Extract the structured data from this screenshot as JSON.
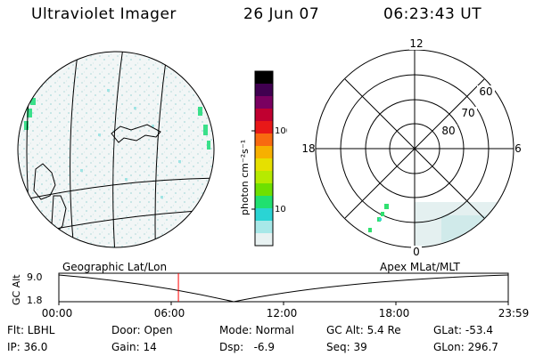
{
  "header": {
    "title": "Ultraviolet Imager",
    "date": "26 Jun 07",
    "time": "06:23:43 UT"
  },
  "colorbar": {
    "unit_label": "photon cm⁻²s⁻¹",
    "ticks": [
      "100",
      "10"
    ],
    "colors": [
      "#000000",
      "#400050",
      "#7a0060",
      "#c00030",
      "#e81818",
      "#f86a10",
      "#f7b000",
      "#e6e000",
      "#b6ea00",
      "#6ee000",
      "#20e070",
      "#2ad4d4",
      "#a8e8e8",
      "#e8f2f2"
    ]
  },
  "polar_plot": {
    "mlt_labels": {
      "top": "12",
      "left": "18",
      "right": "6",
      "bottom": "0"
    },
    "lat_labels": [
      "60",
      "70",
      "80"
    ]
  },
  "timeline": {
    "left_label": "Geographic Lat/Lon",
    "right_label": "Apex MLat/MLT",
    "yaxis_title": "GC Alt",
    "y_max": "9.0",
    "y_min": "1.8",
    "time_ticks": [
      "00:00",
      "06:00",
      "12:00",
      "18:00",
      "23:59"
    ],
    "current_time_fraction": 0.266,
    "marker_color": "#ff0000"
  },
  "footer": {
    "row1": {
      "flt": "Flt: LBHL",
      "door": "Door: Open",
      "mode": "Mode: Normal",
      "gc_alt": "GC Alt: 5.4 Re",
      "glat": "GLat: -53.4"
    },
    "row2": {
      "ip": "IP: 36.0",
      "gain": "Gain: 14",
      "dsp": "Dsp:   -6.9",
      "seq": "Seq: 39",
      "glon": "GLon: 296.7"
    }
  }
}
